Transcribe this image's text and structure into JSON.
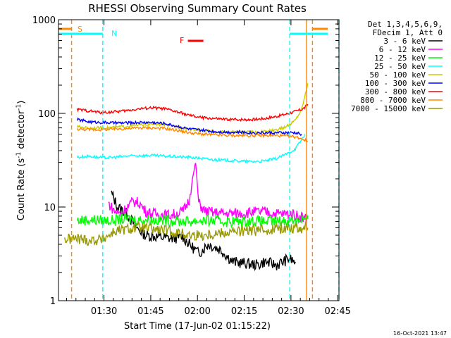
{
  "chart_data": {
    "type": "line",
    "title": "RHESSI Observing Summary Count Rates",
    "xlabel": "Start Time (17-Jun-02 01:15:22)",
    "ylabel_main": "Count Rate (s",
    "ylabel_sup1": "-1",
    "ylabel_mid": " detector",
    "ylabel_sup2": "-1",
    "ylabel_end": ")",
    "yscale": "log",
    "ylim": [
      1,
      1000
    ],
    "xlim_minutes": [
      0,
      90
    ],
    "x_unit": "minutes since 01:15:22",
    "x_ticks": [
      {
        "label": "01:30",
        "min": 14.6
      },
      {
        "label": "01:45",
        "min": 29.6
      },
      {
        "label": "02:00",
        "min": 44.6
      },
      {
        "label": "02:15",
        "min": 59.6
      },
      {
        "label": "02:30",
        "min": 74.6
      },
      {
        "label": "02:45",
        "min": 89.6
      }
    ],
    "y_ticks": [
      {
        "label": "1",
        "value": 1
      },
      {
        "label": "10",
        "value": 10
      },
      {
        "label": "100",
        "value": 100
      },
      {
        "label": "1000",
        "value": 1000
      }
    ],
    "legend_header": [
      "Det 1,3,4,5,6,9,",
      "FDecim 1, Att 0"
    ],
    "series": [
      {
        "name": "3 - 6 keV",
        "color": "#000000",
        "points": [
          [
            17,
            14
          ],
          [
            19,
            10
          ],
          [
            22,
            8.5
          ],
          [
            25,
            6
          ],
          [
            28,
            5
          ],
          [
            32,
            4.8
          ],
          [
            36,
            4.6
          ],
          [
            40,
            4.8
          ],
          [
            42,
            4
          ],
          [
            45,
            3.2
          ],
          [
            48,
            4
          ],
          [
            52,
            3.5
          ],
          [
            56,
            2.6
          ],
          [
            60,
            2.5
          ],
          [
            64,
            2.4
          ],
          [
            66,
            2.6
          ],
          [
            70,
            2.4
          ],
          [
            74,
            2.8
          ],
          [
            76,
            2.6
          ]
        ]
      },
      {
        "name": "6 - 12 keV",
        "color": "#ff00ff",
        "points": [
          [
            16,
            11
          ],
          [
            18,
            9
          ],
          [
            20,
            8.5
          ],
          [
            22,
            10
          ],
          [
            24,
            11.5
          ],
          [
            26,
            11
          ],
          [
            28,
            9
          ],
          [
            30,
            8.5
          ],
          [
            34,
            8.3
          ],
          [
            36,
            8.2
          ],
          [
            38,
            8.5
          ],
          [
            40,
            9
          ],
          [
            42,
            12
          ],
          [
            43,
            20
          ],
          [
            44,
            30
          ],
          [
            45,
            11
          ],
          [
            47,
            9
          ],
          [
            50,
            8.7
          ],
          [
            54,
            8.5
          ],
          [
            58,
            8.6
          ],
          [
            62,
            8.8
          ],
          [
            66,
            8.9
          ],
          [
            70,
            8.5
          ],
          [
            74,
            8.4
          ],
          [
            76,
            8.2
          ],
          [
            78,
            8
          ],
          [
            79,
            7.5
          ],
          [
            80,
            8
          ]
        ]
      },
      {
        "name": "12 - 25 keV",
        "color": "#00ff00",
        "points": [
          [
            6,
            7.2
          ],
          [
            10,
            7.3
          ],
          [
            14,
            7.2
          ],
          [
            18,
            7.2
          ],
          [
            22,
            7.5
          ],
          [
            26,
            7.3
          ],
          [
            30,
            7.3
          ],
          [
            34,
            7.2
          ],
          [
            38,
            7.1
          ],
          [
            42,
            7
          ],
          [
            46,
            7.2
          ],
          [
            50,
            7.1
          ],
          [
            54,
            7
          ],
          [
            58,
            7
          ],
          [
            62,
            7.1
          ],
          [
            66,
            7
          ],
          [
            70,
            7
          ],
          [
            74,
            7.2
          ],
          [
            78,
            7.4
          ],
          [
            80,
            7.5
          ]
        ]
      },
      {
        "name": "25 - 50 keV",
        "color": "#00ffff",
        "points": [
          [
            6,
            34
          ],
          [
            10,
            35
          ],
          [
            14,
            33.5
          ],
          [
            18,
            34
          ],
          [
            22,
            35
          ],
          [
            26,
            35.5
          ],
          [
            30,
            35.5
          ],
          [
            34,
            35
          ],
          [
            38,
            34.5
          ],
          [
            42,
            34
          ],
          [
            46,
            33
          ],
          [
            50,
            32
          ],
          [
            54,
            31.5
          ],
          [
            58,
            31
          ],
          [
            62,
            30.5
          ],
          [
            66,
            31
          ],
          [
            70,
            33
          ],
          [
            74,
            38
          ],
          [
            76,
            42
          ],
          [
            78,
            52
          ],
          [
            79,
            60
          ]
        ]
      },
      {
        "name": "50 - 100 keV",
        "color": "#cccc00",
        "points": [
          [
            6,
            72
          ],
          [
            10,
            70
          ],
          [
            14,
            70
          ],
          [
            18,
            71
          ],
          [
            22,
            73
          ],
          [
            26,
            75
          ],
          [
            30,
            77
          ],
          [
            34,
            76
          ],
          [
            38,
            72
          ],
          [
            42,
            68
          ],
          [
            46,
            66
          ],
          [
            50,
            64
          ],
          [
            54,
            63
          ],
          [
            58,
            63
          ],
          [
            62,
            63
          ],
          [
            66,
            64
          ],
          [
            70,
            66
          ],
          [
            74,
            75
          ],
          [
            76,
            85
          ],
          [
            78,
            110
          ],
          [
            79,
            150
          ],
          [
            80,
            210
          ]
        ]
      },
      {
        "name": "100 - 300 keV",
        "color": "#0000ff",
        "points": [
          [
            6,
            86
          ],
          [
            10,
            81
          ],
          [
            14,
            80
          ],
          [
            18,
            79
          ],
          [
            22,
            79
          ],
          [
            26,
            80
          ],
          [
            30,
            80
          ],
          [
            34,
            78
          ],
          [
            38,
            73
          ],
          [
            42,
            68
          ],
          [
            46,
            66
          ],
          [
            50,
            64
          ],
          [
            54,
            63
          ],
          [
            58,
            63
          ],
          [
            62,
            62
          ],
          [
            66,
            62
          ],
          [
            70,
            62
          ],
          [
            74,
            62
          ],
          [
            76,
            62
          ],
          [
            78,
            60
          ]
        ]
      },
      {
        "name": "300 - 800 keV",
        "color": "#ff0000",
        "points": [
          [
            6,
            110
          ],
          [
            10,
            106
          ],
          [
            14,
            102
          ],
          [
            18,
            104
          ],
          [
            22,
            107
          ],
          [
            26,
            112
          ],
          [
            30,
            115
          ],
          [
            34,
            112
          ],
          [
            38,
            104
          ],
          [
            42,
            95
          ],
          [
            46,
            90
          ],
          [
            50,
            88
          ],
          [
            54,
            86
          ],
          [
            58,
            86
          ],
          [
            62,
            86
          ],
          [
            66,
            88
          ],
          [
            70,
            93
          ],
          [
            74,
            100
          ],
          [
            76,
            105
          ],
          [
            78,
            110
          ],
          [
            79,
            115
          ],
          [
            80,
            125
          ]
        ]
      },
      {
        "name": "800 - 7000 keV",
        "color": "#ff8800",
        "points": [
          [
            6,
            68
          ],
          [
            10,
            67
          ],
          [
            14,
            67
          ],
          [
            18,
            68
          ],
          [
            22,
            69
          ],
          [
            26,
            70
          ],
          [
            30,
            70
          ],
          [
            34,
            69
          ],
          [
            38,
            66
          ],
          [
            42,
            62
          ],
          [
            46,
            60
          ],
          [
            50,
            59
          ],
          [
            54,
            58
          ],
          [
            58,
            58
          ],
          [
            62,
            58
          ],
          [
            66,
            58
          ],
          [
            70,
            58
          ],
          [
            74,
            57
          ],
          [
            76,
            56
          ],
          [
            78,
            54
          ],
          [
            80,
            50
          ]
        ]
      },
      {
        "name": "7000 - 15000 keV",
        "color": "#999900",
        "points": [
          [
            2,
            4.5
          ],
          [
            6,
            4.6
          ],
          [
            10,
            4.4
          ],
          [
            14,
            4.5
          ],
          [
            18,
            5.5
          ],
          [
            22,
            5.8
          ],
          [
            26,
            6
          ],
          [
            30,
            5.8
          ],
          [
            34,
            5.6
          ],
          [
            38,
            5.3
          ],
          [
            42,
            5
          ],
          [
            46,
            5
          ],
          [
            50,
            5.2
          ],
          [
            54,
            5.4
          ],
          [
            58,
            5.5
          ],
          [
            62,
            5.6
          ],
          [
            66,
            5.7
          ],
          [
            70,
            5.9
          ],
          [
            74,
            6
          ],
          [
            78,
            6
          ],
          [
            80,
            6
          ]
        ]
      }
    ],
    "annotations": [
      {
        "label": "S",
        "color": "#ff8800",
        "min": 0
      },
      {
        "label": "N",
        "color": "#00ffff",
        "min": 14.2
      },
      {
        "label": "F",
        "color": "#ff0000",
        "min": 43
      }
    ],
    "vlines": [
      {
        "min": 4.2,
        "color": "#ff8800"
      },
      {
        "min": 14.2,
        "color": "#00ffff"
      },
      {
        "min": 74.2,
        "color": "#00ffff"
      },
      {
        "min": 79.6,
        "color": "#ff8800"
      },
      {
        "min": 81.5,
        "color": "#ff8800"
      },
      {
        "min": 90,
        "color": "#00ffff"
      }
    ],
    "footer": "16-Oct-2021 13:47"
  }
}
